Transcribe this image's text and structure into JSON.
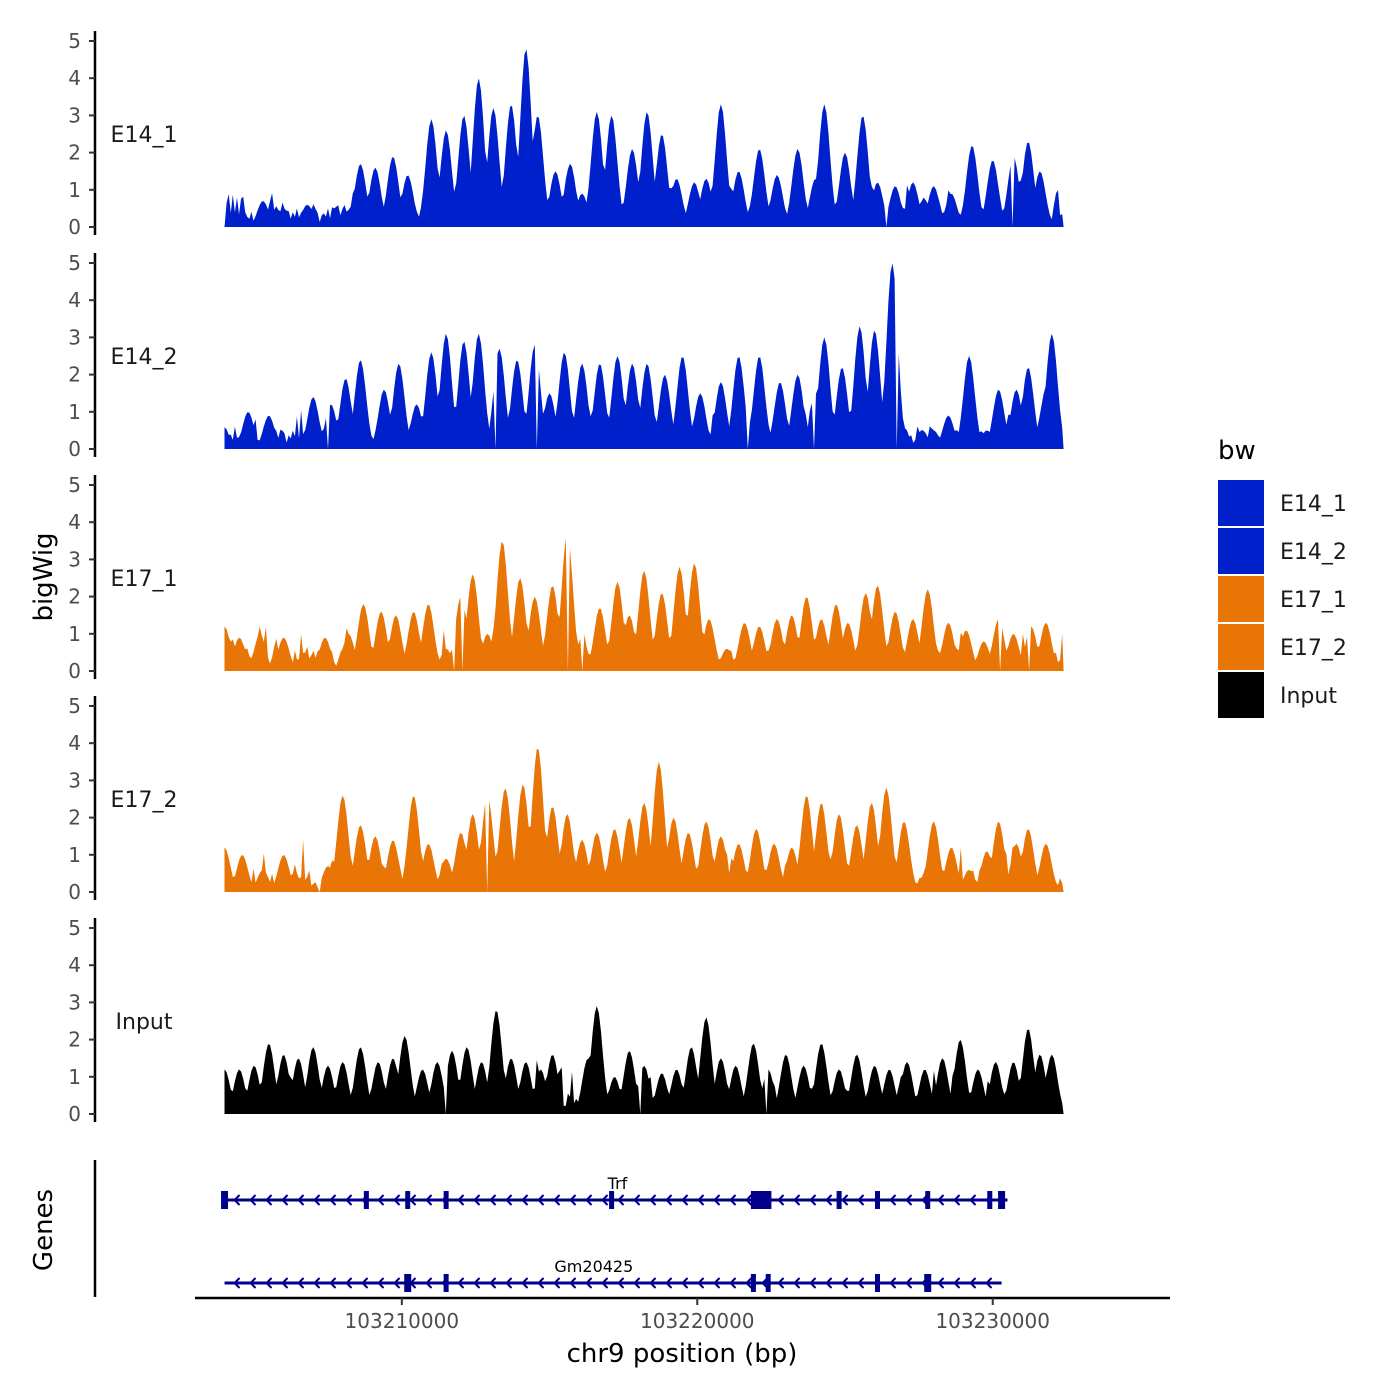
{
  "chart_data": {
    "type": "area",
    "ylabel": "bigWig",
    "xlabel": "chr9 position (bp)",
    "genes_label": "Genes",
    "legend_title": "bw",
    "x_range": [
      103203000,
      103236000
    ],
    "data_x_range": [
      103204000,
      103232400
    ],
    "ylim": [
      0,
      5
    ],
    "y_ticks": [
      "0",
      "1",
      "2",
      "3",
      "4",
      "5"
    ],
    "x_ticks": [
      {
        "value": 103210000,
        "label": "103210000"
      },
      {
        "value": 103220000,
        "label": "103220000"
      },
      {
        "value": 103230000,
        "label": "103230000"
      }
    ],
    "colors": {
      "E14_1": "#0020cc",
      "E14_2": "#0020cc",
      "E17_1": "#e87506",
      "E17_2": "#e87506",
      "Input": "#000000",
      "gene": "#00008b"
    },
    "legend": [
      "E14_1",
      "E14_2",
      "E17_1",
      "E17_2",
      "Input"
    ],
    "series": [
      {
        "name": "E14_1",
        "peaks": [
          [
            103204000,
            0.7
          ],
          [
            103204600,
            0.4
          ],
          [
            103205300,
            0.7
          ],
          [
            103206000,
            0.5
          ],
          [
            103206800,
            0.6
          ],
          [
            103207700,
            0.3
          ],
          [
            103208600,
            1.7
          ],
          [
            103209100,
            1.6
          ],
          [
            103209700,
            1.9
          ],
          [
            103210200,
            1.4
          ],
          [
            103211000,
            2.9
          ],
          [
            103211500,
            2.6
          ],
          [
            103212100,
            3.0
          ],
          [
            103212600,
            4.0
          ],
          [
            103213100,
            3.2
          ],
          [
            103213700,
            3.3
          ],
          [
            103214200,
            4.8
          ],
          [
            103214600,
            3.0
          ],
          [
            103215200,
            1.5
          ],
          [
            103215700,
            1.7
          ],
          [
            103216100,
            0.9
          ],
          [
            103216600,
            3.1
          ],
          [
            103217100,
            3.0
          ],
          [
            103217800,
            2.1
          ],
          [
            103218300,
            3.1
          ],
          [
            103218800,
            2.5
          ],
          [
            103219300,
            1.3
          ],
          [
            103219900,
            1.2
          ],
          [
            103220300,
            1.3
          ],
          [
            103220800,
            3.3
          ],
          [
            103221400,
            1.5
          ],
          [
            103222100,
            2.1
          ],
          [
            103222700,
            1.4
          ],
          [
            103223400,
            2.1
          ],
          [
            103224000,
            1.3
          ],
          [
            103224300,
            3.3
          ],
          [
            103225000,
            2.0
          ],
          [
            103225600,
            3.0
          ],
          [
            103226100,
            1.2
          ],
          [
            103226700,
            1.1
          ],
          [
            103227300,
            1.2
          ],
          [
            103228000,
            1.1
          ],
          [
            103228600,
            0.9
          ],
          [
            103229300,
            2.2
          ],
          [
            103230000,
            1.8
          ],
          [
            103230700,
            1.9
          ],
          [
            103231200,
            2.3
          ],
          [
            103231600,
            1.5
          ],
          [
            103232300,
            0.3
          ]
        ]
      },
      {
        "name": "E14_2",
        "peaks": [
          [
            103204400,
            0.3
          ],
          [
            103204800,
            1.0
          ],
          [
            103205500,
            0.9
          ],
          [
            103206300,
            0.3
          ],
          [
            103207000,
            1.4
          ],
          [
            103207600,
            1.2
          ],
          [
            103208100,
            1.9
          ],
          [
            103208600,
            2.4
          ],
          [
            103209400,
            1.6
          ],
          [
            103209900,
            2.3
          ],
          [
            103210500,
            1.2
          ],
          [
            103211000,
            2.6
          ],
          [
            103211500,
            3.1
          ],
          [
            103212100,
            2.9
          ],
          [
            103212600,
            3.1
          ],
          [
            103213300,
            2.7
          ],
          [
            103213900,
            2.4
          ],
          [
            103214500,
            2.8
          ],
          [
            103215000,
            1.5
          ],
          [
            103215500,
            2.6
          ],
          [
            103216100,
            2.3
          ],
          [
            103216700,
            2.3
          ],
          [
            103217300,
            2.5
          ],
          [
            103217800,
            2.3
          ],
          [
            103218300,
            2.3
          ],
          [
            103218900,
            2.0
          ],
          [
            103219500,
            2.5
          ],
          [
            103220100,
            1.5
          ],
          [
            103220800,
            1.8
          ],
          [
            103221400,
            2.5
          ],
          [
            103222100,
            2.5
          ],
          [
            103222800,
            1.8
          ],
          [
            103223400,
            2.0
          ],
          [
            103224000,
            1.5
          ],
          [
            103224300,
            3.0
          ],
          [
            103224900,
            2.2
          ],
          [
            103225500,
            3.3
          ],
          [
            103226000,
            3.2
          ],
          [
            103226600,
            5.0
          ],
          [
            103227200,
            0.1
          ],
          [
            103228000,
            0.5
          ],
          [
            103228500,
            0.9
          ],
          [
            103229200,
            2.5
          ],
          [
            103229800,
            0.5
          ],
          [
            103230200,
            1.6
          ],
          [
            103230800,
            1.6
          ],
          [
            103231200,
            2.2
          ],
          [
            103231800,
            1.6
          ],
          [
            103232000,
            3.1
          ]
        ]
      },
      {
        "name": "E17_1",
        "peaks": [
          [
            103204000,
            1.2
          ],
          [
            103204500,
            0.9
          ],
          [
            103205200,
            1.0
          ],
          [
            103206000,
            0.9
          ],
          [
            103206700,
            0.5
          ],
          [
            103207400,
            0.9
          ],
          [
            103208200,
            1.0
          ],
          [
            103208700,
            1.8
          ],
          [
            103209300,
            1.6
          ],
          [
            103209800,
            1.5
          ],
          [
            103210400,
            1.6
          ],
          [
            103210900,
            1.8
          ],
          [
            103211500,
            0.6
          ],
          [
            103212000,
            2.0
          ],
          [
            103212400,
            2.6
          ],
          [
            103212900,
            1.0
          ],
          [
            103213400,
            3.5
          ],
          [
            103214000,
            2.5
          ],
          [
            103214500,
            2.0
          ],
          [
            103215100,
            2.3
          ],
          [
            103215600,
            3.7
          ],
          [
            103216100,
            0.9
          ],
          [
            103216700,
            1.7
          ],
          [
            103217300,
            2.4
          ],
          [
            103217700,
            1.5
          ],
          [
            103218200,
            2.7
          ],
          [
            103218800,
            2.1
          ],
          [
            103219400,
            2.8
          ],
          [
            103219900,
            2.9
          ],
          [
            103220400,
            1.4
          ],
          [
            103221000,
            0.6
          ],
          [
            103221600,
            1.3
          ],
          [
            103222100,
            1.2
          ],
          [
            103222700,
            1.4
          ],
          [
            103223200,
            1.5
          ],
          [
            103223700,
            2.0
          ],
          [
            103224200,
            1.4
          ],
          [
            103224700,
            1.8
          ],
          [
            103225100,
            1.3
          ],
          [
            103225700,
            2.1
          ],
          [
            103226100,
            2.3
          ],
          [
            103226700,
            1.6
          ],
          [
            103227300,
            1.4
          ],
          [
            103227800,
            2.2
          ],
          [
            103228500,
            1.3
          ],
          [
            103229100,
            1.1
          ],
          [
            103229700,
            0.8
          ],
          [
            103230200,
            1.4
          ],
          [
            103230700,
            1.0
          ],
          [
            103231300,
            1.2
          ],
          [
            103231800,
            1.3
          ]
        ]
      },
      {
        "name": "E17_2",
        "peaks": [
          [
            103204000,
            1.2
          ],
          [
            103204600,
            1.0
          ],
          [
            103205300,
            0.6
          ],
          [
            103206000,
            1.0
          ],
          [
            103206600,
            0.4
          ],
          [
            103207500,
            0.7
          ],
          [
            103208000,
            2.6
          ],
          [
            103208600,
            1.8
          ],
          [
            103209100,
            1.5
          ],
          [
            103209700,
            1.4
          ],
          [
            103210400,
            2.6
          ],
          [
            103210900,
            1.3
          ],
          [
            103211500,
            0.9
          ],
          [
            103212000,
            1.6
          ],
          [
            103212400,
            2.1
          ],
          [
            103212900,
            2.6
          ],
          [
            103213500,
            2.8
          ],
          [
            103214100,
            2.9
          ],
          [
            103214600,
            3.9
          ],
          [
            103215100,
            2.3
          ],
          [
            103215600,
            2.1
          ],
          [
            103216100,
            1.4
          ],
          [
            103216600,
            1.6
          ],
          [
            103217200,
            1.7
          ],
          [
            103217700,
            2.0
          ],
          [
            103218200,
            2.4
          ],
          [
            103218700,
            3.5
          ],
          [
            103219200,
            2.0
          ],
          [
            103219700,
            1.6
          ],
          [
            103220300,
            1.9
          ],
          [
            103220800,
            1.5
          ],
          [
            103221400,
            1.3
          ],
          [
            103222000,
            1.7
          ],
          [
            103222600,
            1.3
          ],
          [
            103223200,
            1.2
          ],
          [
            103223700,
            2.6
          ],
          [
            103224200,
            2.4
          ],
          [
            103224800,
            2.1
          ],
          [
            103225400,
            1.8
          ],
          [
            103225900,
            2.4
          ],
          [
            103226400,
            2.8
          ],
          [
            103227000,
            1.9
          ],
          [
            103227600,
            0.2
          ],
          [
            103228000,
            1.9
          ],
          [
            103228600,
            1.2
          ],
          [
            103229200,
            0.6
          ],
          [
            103229800,
            1.1
          ],
          [
            103230200,
            1.9
          ],
          [
            103230800,
            1.3
          ],
          [
            103231200,
            1.7
          ],
          [
            103231800,
            1.3
          ]
        ]
      },
      {
        "name": "Input",
        "peaks": [
          [
            103204000,
            1.2
          ],
          [
            103204500,
            1.2
          ],
          [
            103205000,
            1.3
          ],
          [
            103205500,
            1.9
          ],
          [
            103206000,
            1.6
          ],
          [
            103206500,
            1.5
          ],
          [
            103207000,
            1.8
          ],
          [
            103207500,
            1.3
          ],
          [
            103208000,
            1.4
          ],
          [
            103208600,
            1.8
          ],
          [
            103209200,
            1.4
          ],
          [
            103209700,
            1.5
          ],
          [
            103210100,
            2.1
          ],
          [
            103210700,
            1.2
          ],
          [
            103211200,
            1.4
          ],
          [
            103211700,
            1.7
          ],
          [
            103212200,
            1.8
          ],
          [
            103212700,
            1.4
          ],
          [
            103213200,
            2.8
          ],
          [
            103213700,
            1.5
          ],
          [
            103214200,
            1.4
          ],
          [
            103214700,
            1.2
          ],
          [
            103215100,
            1.6
          ],
          [
            103215700,
            0.3
          ],
          [
            103216300,
            1.5
          ],
          [
            103216600,
            2.9
          ],
          [
            103217200,
            1.0
          ],
          [
            103217700,
            1.7
          ],
          [
            103218200,
            1.3
          ],
          [
            103218800,
            1.1
          ],
          [
            103219300,
            1.2
          ],
          [
            103219800,
            1.8
          ],
          [
            103220300,
            2.6
          ],
          [
            103220800,
            1.5
          ],
          [
            103221300,
            1.3
          ],
          [
            103221900,
            1.9
          ],
          [
            103222400,
            1.2
          ],
          [
            103223000,
            1.6
          ],
          [
            103223600,
            1.3
          ],
          [
            103224200,
            1.9
          ],
          [
            103224800,
            1.2
          ],
          [
            103225400,
            1.6
          ],
          [
            103226000,
            1.3
          ],
          [
            103226500,
            1.2
          ],
          [
            103227100,
            1.4
          ],
          [
            103227700,
            1.2
          ],
          [
            103228300,
            1.5
          ],
          [
            103228900,
            2.0
          ],
          [
            103229500,
            1.2
          ],
          [
            103230100,
            1.4
          ],
          [
            103230700,
            1.4
          ],
          [
            103231200,
            2.3
          ],
          [
            103231600,
            1.6
          ],
          [
            103232000,
            1.6
          ]
        ]
      }
    ],
    "genes": [
      {
        "name": "Trf",
        "start": 103204000,
        "end": 103230500,
        "strand": "-",
        "label_pos": 103217300,
        "exons": [
          103204000,
          103208800,
          103210200,
          103211500,
          103217100,
          103221900,
          103222300,
          103224800,
          103226100,
          103227800,
          103229900,
          103230300
        ]
      },
      {
        "name": "Gm20425",
        "start": 103204000,
        "end": 103230300,
        "strand": "-",
        "label_pos": 103216500,
        "exons": [
          103210200,
          103211500,
          103221900,
          103222400,
          103226100,
          103227800
        ]
      }
    ]
  }
}
